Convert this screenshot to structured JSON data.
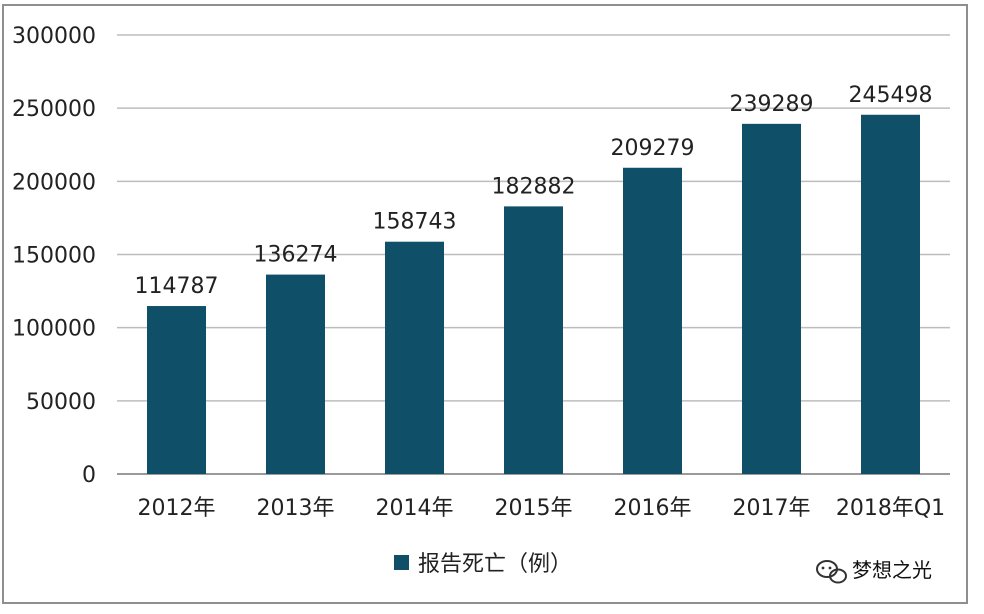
{
  "chart_data": {
    "type": "bar",
    "categories": [
      "2012年",
      "2013年",
      "2014年",
      "2015年",
      "2016年",
      "2017年",
      "2018年Q1"
    ],
    "series": [
      {
        "name": "报告死亡（例）",
        "values": [
          114787,
          136274,
          158743,
          182882,
          209279,
          239289,
          245498
        ],
        "color": "#0f5068"
      }
    ],
    "data_labels": [
      "114787",
      "136274",
      "158743",
      "182882",
      "209279",
      "239289",
      "245498"
    ],
    "y_ticks": [
      "0",
      "50000",
      "100000",
      "150000",
      "200000",
      "250000",
      "300000"
    ],
    "ylim": [
      0,
      300000
    ],
    "grid": true,
    "legend_position": "bottom-center",
    "title": "",
    "xlabel": "",
    "ylabel": ""
  },
  "watermark": {
    "icon": "wechat-icon",
    "text": "梦想之光"
  }
}
